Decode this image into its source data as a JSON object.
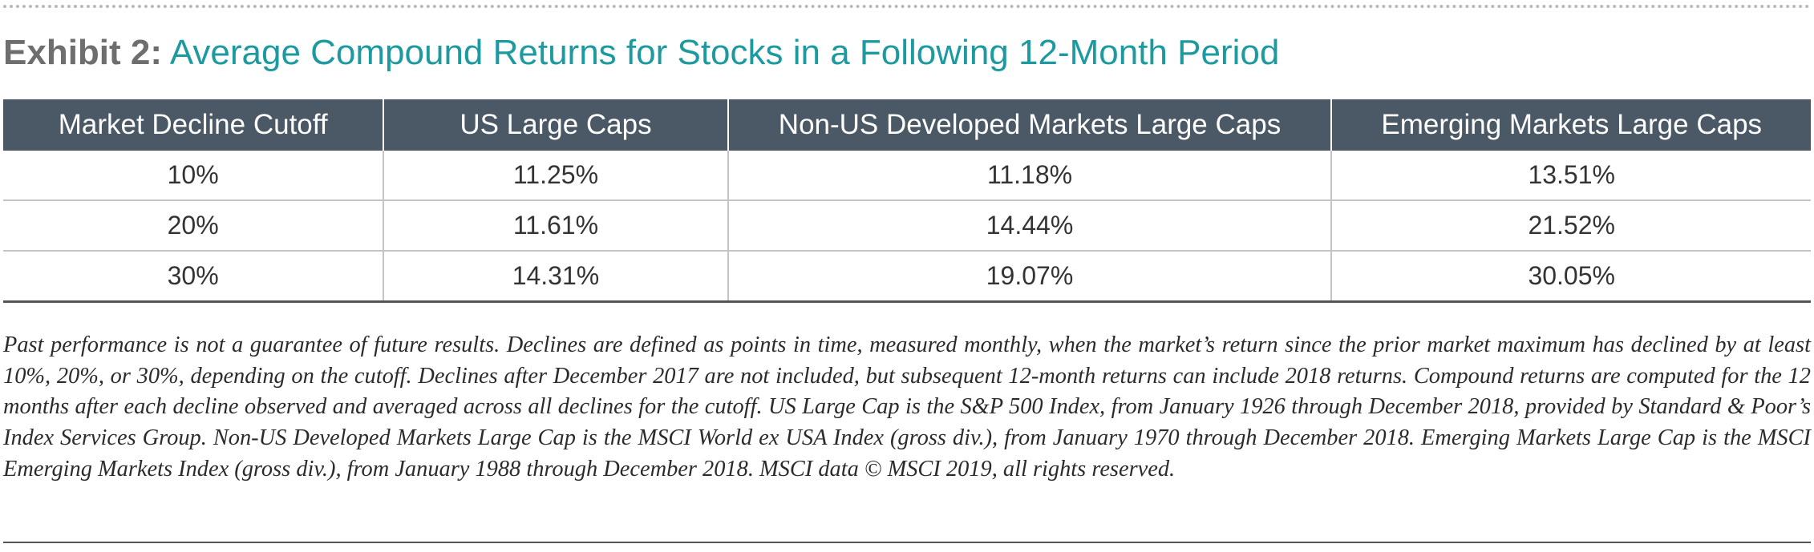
{
  "exhibit": {
    "prefix": "Exhibit 2:",
    "title": "Average Compound Returns for Stocks in a Following 12-Month Period"
  },
  "table": {
    "headers": [
      "Market Decline Cutoff",
      "US Large Caps",
      "Non-US Developed Markets Large Caps",
      "Emerging Markets Large Caps"
    ],
    "rows": [
      [
        "10%",
        "11.25%",
        "11.18%",
        "13.51%"
      ],
      [
        "20%",
        "11.61%",
        "14.44%",
        "21.52%"
      ],
      [
        "30%",
        "14.31%",
        "19.07%",
        "30.05%"
      ]
    ]
  },
  "footnote": "Past performance is not a guarantee of future results. Declines are defined as points in time, measured monthly, when the market’s return since the prior market maximum has declined by at least 10%, 20%, or 30%, depending on the cutoff. Declines after December 2017 are not included, but subsequent 12-month returns can include 2018 returns. Compound returns are computed for the 12 months after each decline observed and averaged across all declines for the cutoff. US Large Cap is the S&P 500 Index, from January 1926 through December 2018, provided by Standard & Poor’s Index Services Group. Non-US Developed Markets Large Cap is the MSCI World ex USA Index (gross div.), from January 1970 through December 2018. Emerging Markets Large Cap is the MSCI Emerging Markets Index (gross div.), from January 1988 through December 2018. MSCI data © MSCI 2019, all rights reserved.",
  "colors": {
    "title_prefix": "#6e6e6e",
    "title_text": "#1c9aa0",
    "header_background": "#4b5865"
  }
}
